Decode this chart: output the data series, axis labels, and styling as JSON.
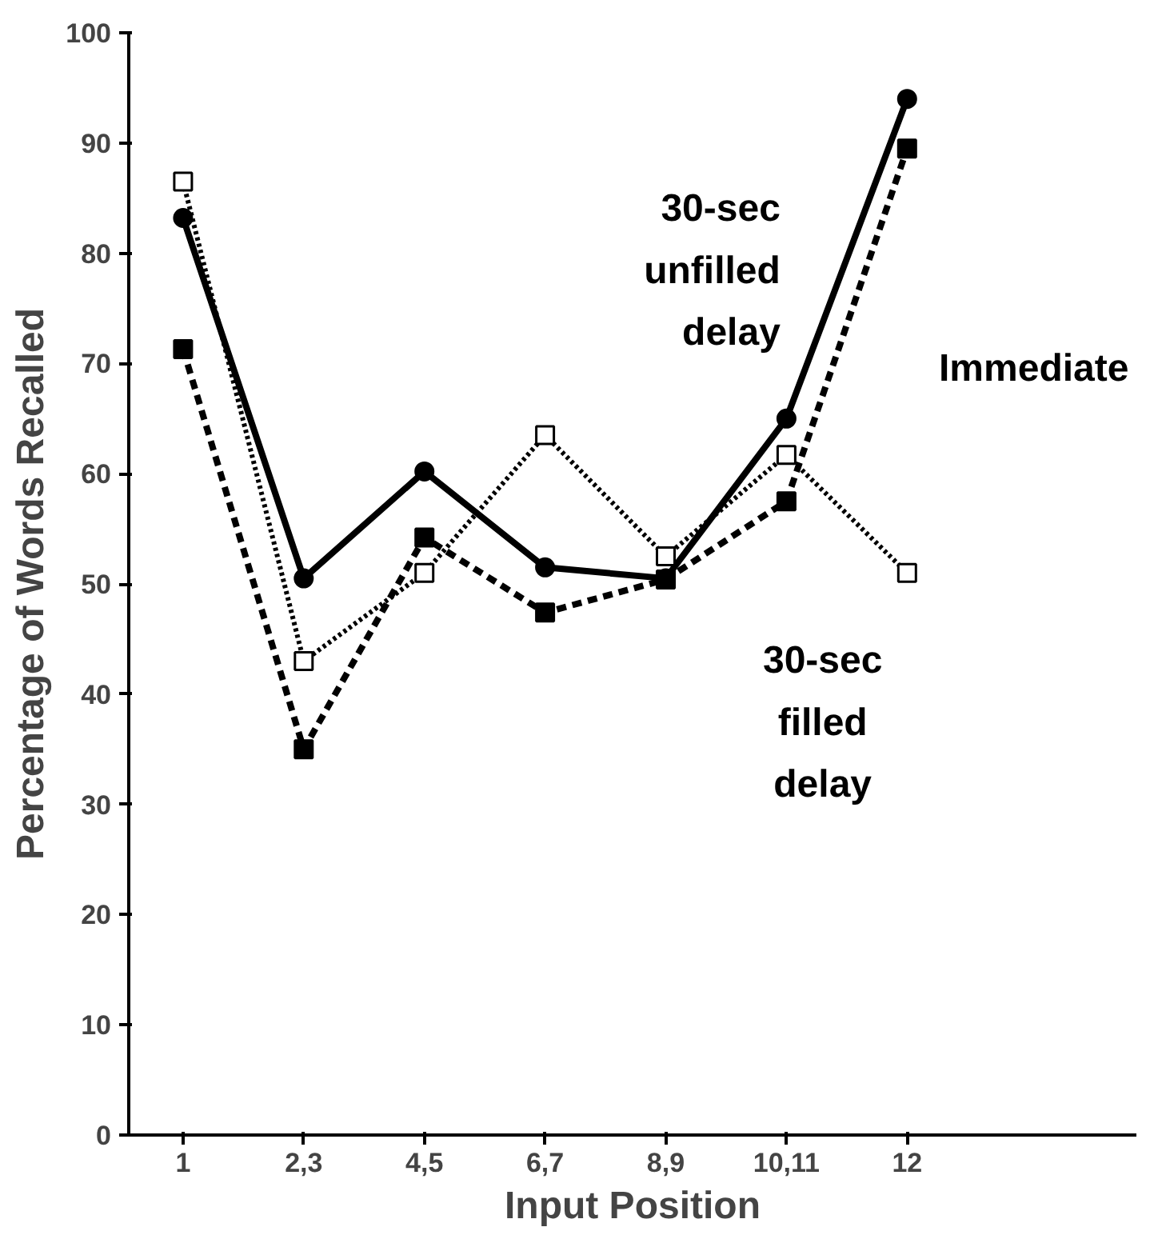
{
  "chart_data": {
    "type": "line",
    "xlabel": "Input Position",
    "ylabel": "Percentage of Words Recalled",
    "categories": [
      "1",
      "2,3",
      "4,5",
      "6,7",
      "8,9",
      "10,11",
      "12"
    ],
    "ylim": [
      0,
      100
    ],
    "yticks": [
      0,
      10,
      20,
      30,
      40,
      50,
      60,
      70,
      80,
      90,
      100
    ],
    "grid": false,
    "legend": false,
    "series": [
      {
        "name": "30-sec unfilled delay",
        "color": "#000000",
        "marker": "circle",
        "line_style": "solid",
        "values": [
          83.2,
          50.5,
          60.2,
          51.5,
          50.5,
          65,
          94
        ]
      },
      {
        "name": "Immediate",
        "color": "#000000",
        "marker": "square",
        "line_style": "dashed",
        "values": [
          71.3,
          35,
          54.2,
          47.4,
          50.4,
          57.5,
          89.5
        ]
      },
      {
        "name": "30-sec filled delay",
        "color": "#000000",
        "marker": "square",
        "line_style": "dotted",
        "values": [
          86.5,
          43,
          51,
          63.5,
          52.5,
          61.7,
          51
        ]
      }
    ]
  }
}
